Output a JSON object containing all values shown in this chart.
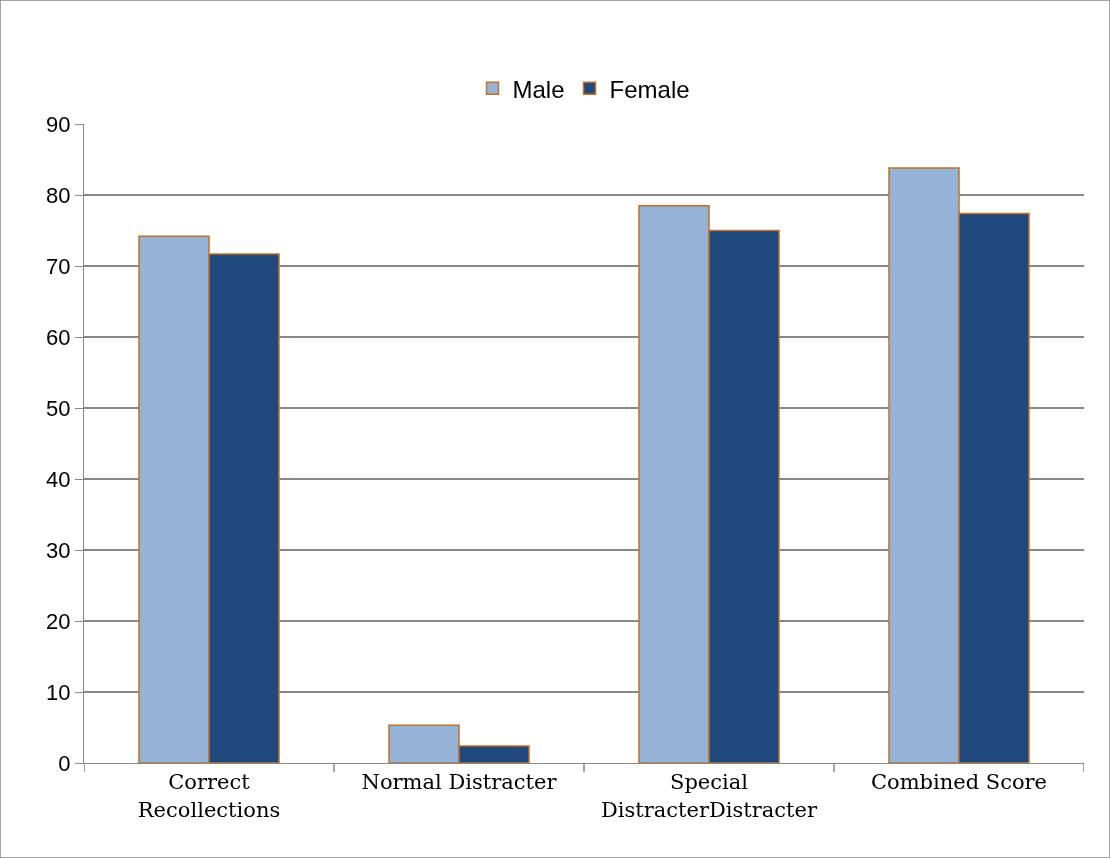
{
  "chart_data": {
    "type": "bar",
    "categories": [
      "Correct Recollections",
      "Normal Distracter",
      "Special DistracterDistracter",
      "Combined Score"
    ],
    "series": [
      {
        "name": "Male",
        "color": "#95b3d7",
        "values": [
          74.2,
          5.3,
          78.5,
          83.8
        ]
      },
      {
        "name": "Female",
        "color": "#1f497d",
        "values": [
          71.7,
          2.4,
          75.0,
          77.4
        ]
      }
    ],
    "ylim": [
      0,
      90
    ],
    "yticks": [
      0,
      10,
      20,
      30,
      40,
      50,
      60,
      70,
      80,
      90
    ],
    "grid": "y",
    "legend": "top"
  }
}
